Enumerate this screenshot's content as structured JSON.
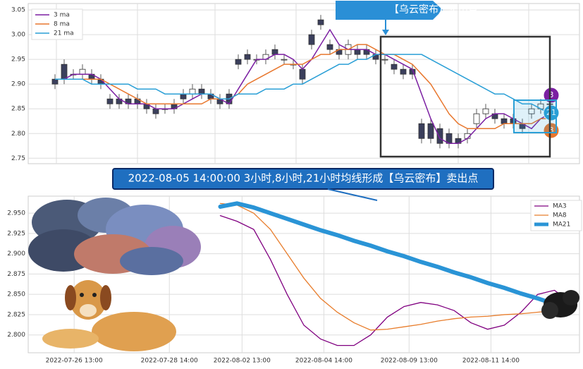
{
  "chart_data": [
    {
      "type": "candlestick",
      "annotation": "【乌云密布】卖出点",
      "open": [
        2.91,
        2.94,
        2.92,
        2.92,
        2.92,
        2.91,
        2.87,
        2.87,
        2.87,
        2.87,
        2.86,
        2.85,
        2.85,
        2.86,
        2.88,
        2.88,
        2.89,
        2.88,
        2.87,
        2.88,
        2.95,
        2.96,
        2.95,
        2.95,
        2.97,
        2.95,
        2.94,
        2.93,
        3.0,
        3.03,
        2.98,
        2.97,
        2.96,
        2.97,
        2.97,
        2.96,
        2.95,
        2.94,
        2.93,
        2.93,
        2.82,
        2.82,
        2.81,
        2.8,
        2.79,
        2.79,
        2.82,
        2.84,
        2.84,
        2.83,
        2.83,
        2.82,
        2.84,
        2.85,
        2.86
      ],
      "close": [
        2.9,
        2.91,
        2.92,
        2.93,
        2.91,
        2.9,
        2.86,
        2.86,
        2.86,
        2.86,
        2.85,
        2.84,
        2.85,
        2.85,
        2.87,
        2.89,
        2.88,
        2.87,
        2.86,
        2.86,
        2.94,
        2.95,
        2.95,
        2.96,
        2.96,
        2.95,
        2.94,
        2.91,
        2.98,
        3.02,
        2.97,
        2.96,
        2.98,
        2.96,
        2.96,
        2.95,
        2.95,
        2.93,
        2.92,
        2.92,
        2.79,
        2.79,
        2.78,
        2.78,
        2.78,
        2.8,
        2.84,
        2.85,
        2.83,
        2.82,
        2.82,
        2.81,
        2.85,
        2.86,
        2.86
      ],
      "high": [
        2.92,
        2.95,
        2.93,
        2.94,
        2.93,
        2.92,
        2.88,
        2.88,
        2.88,
        2.88,
        2.87,
        2.86,
        2.86,
        2.87,
        2.89,
        2.9,
        2.9,
        2.89,
        2.88,
        2.89,
        2.96,
        2.97,
        2.96,
        2.97,
        2.98,
        2.96,
        2.95,
        2.94,
        3.01,
        3.04,
        2.99,
        2.98,
        2.99,
        2.98,
        2.98,
        2.97,
        2.96,
        2.95,
        2.94,
        2.94,
        2.83,
        2.83,
        2.82,
        2.81,
        2.8,
        2.81,
        2.85,
        2.86,
        2.85,
        2.84,
        2.84,
        2.83,
        2.86,
        2.87,
        2.87
      ],
      "low": [
        2.89,
        2.9,
        2.91,
        2.91,
        2.9,
        2.89,
        2.85,
        2.85,
        2.85,
        2.85,
        2.84,
        2.83,
        2.84,
        2.84,
        2.86,
        2.87,
        2.87,
        2.86,
        2.85,
        2.85,
        2.93,
        2.94,
        2.94,
        2.94,
        2.95,
        2.94,
        2.93,
        2.9,
        2.97,
        3.01,
        2.96,
        2.95,
        2.95,
        2.95,
        2.95,
        2.94,
        2.94,
        2.92,
        2.91,
        2.91,
        2.78,
        2.78,
        2.77,
        2.77,
        2.77,
        2.78,
        2.81,
        2.83,
        2.82,
        2.81,
        2.81,
        2.8,
        2.83,
        2.84,
        2.85
      ],
      "up_color": "#ffffff",
      "down_color": "#3b3f5c",
      "series": [
        {
          "name": "3 ma",
          "color": "#7b1fa2",
          "values": [
            2.91,
            2.91,
            2.92,
            2.92,
            2.92,
            2.91,
            2.89,
            2.87,
            2.86,
            2.86,
            2.86,
            2.85,
            2.85,
            2.85,
            2.86,
            2.87,
            2.88,
            2.88,
            2.87,
            2.86,
            2.89,
            2.92,
            2.95,
            2.95,
            2.96,
            2.96,
            2.95,
            2.93,
            2.95,
            2.98,
            3.01,
            2.98,
            2.97,
            2.97,
            2.97,
            2.96,
            2.96,
            2.95,
            2.94,
            2.93,
            2.88,
            2.83,
            2.79,
            2.78,
            2.78,
            2.79,
            2.81,
            2.83,
            2.84,
            2.84,
            2.83,
            2.82,
            2.81,
            2.83,
            2.84
          ]
        },
        {
          "name": "8 ma",
          "color": "#e8772e",
          "values": [
            2.91,
            2.91,
            2.91,
            2.91,
            2.91,
            2.91,
            2.9,
            2.89,
            2.88,
            2.87,
            2.86,
            2.86,
            2.86,
            2.86,
            2.86,
            2.86,
            2.86,
            2.87,
            2.87,
            2.87,
            2.88,
            2.9,
            2.91,
            2.92,
            2.93,
            2.94,
            2.94,
            2.94,
            2.95,
            2.96,
            2.96,
            2.97,
            2.97,
            2.98,
            2.98,
            2.97,
            2.96,
            2.96,
            2.95,
            2.94,
            2.92,
            2.9,
            2.87,
            2.84,
            2.82,
            2.81,
            2.81,
            2.81,
            2.81,
            2.82,
            2.82,
            2.82,
            2.82,
            2.83,
            2.83
          ]
        },
        {
          "name": "21 ma",
          "color": "#2a9fd6",
          "values": [
            2.91,
            2.91,
            2.91,
            2.91,
            2.9,
            2.9,
            2.9,
            2.9,
            2.9,
            2.89,
            2.89,
            2.89,
            2.88,
            2.88,
            2.88,
            2.88,
            2.88,
            2.88,
            2.87,
            2.87,
            2.88,
            2.88,
            2.88,
            2.89,
            2.89,
            2.89,
            2.9,
            2.9,
            2.91,
            2.92,
            2.93,
            2.94,
            2.94,
            2.95,
            2.95,
            2.96,
            2.96,
            2.96,
            2.96,
            2.96,
            2.96,
            2.95,
            2.94,
            2.93,
            2.92,
            2.91,
            2.9,
            2.89,
            2.88,
            2.88,
            2.87,
            2.86,
            2.86,
            2.85,
            2.84
          ]
        }
      ],
      "end_labels": [
        "3",
        "21",
        "8"
      ],
      "ylim": [
        2.739,
        3.063
      ],
      "yticks": [
        2.75,
        {
          "value": 2.8,
          "label": "2.80"
        },
        2.85,
        {
          "value": 2.9,
          "label": "2.90"
        },
        2.95,
        {
          "value": 3,
          "label": "3.00"
        },
        3.05
      ],
      "grid": true
    },
    {
      "type": "line",
      "annotation": "2022-08-05 14:00:00 3小时,8小时,21小时均线形成【乌云密布】卖出点",
      "x": [
        23,
        25,
        27,
        29,
        31,
        33,
        35,
        37,
        39,
        41,
        43,
        45,
        47,
        49,
        51,
        53,
        55,
        57,
        59,
        61,
        63,
        65
      ],
      "xlim": [
        0,
        66
      ],
      "xticks": [
        {
          "value": 5.5,
          "label": "2022-07-26 13:00"
        },
        {
          "value": 16.9,
          "label": "2022-07-28 14:00"
        },
        {
          "value": 25.6,
          "label": "2022-08-02 13:00"
        },
        {
          "value": 35.4,
          "label": "2022-08-04 14:00"
        },
        {
          "value": 45.6,
          "label": "2022-08-09 13:00"
        },
        {
          "value": 55.4,
          "label": "2022-08-11 14:00"
        }
      ],
      "ylim": [
        2.778,
        2.971
      ],
      "yticks": [
        {
          "value": 2.8,
          "label": "2.800"
        },
        2.825,
        {
          "value": 2.85,
          "label": "2.850"
        },
        2.875,
        {
          "value": 2.9,
          "label": "2.900"
        },
        2.925,
        {
          "value": 2.95,
          "label": "2.950"
        }
      ],
      "grid": true,
      "series": [
        {
          "name": "MA3",
          "color": "#800080",
          "width": 1.3,
          "values": [
            2.947,
            2.94,
            2.93,
            2.893,
            2.85,
            2.812,
            2.795,
            2.787,
            2.787,
            2.8,
            2.822,
            2.835,
            2.84,
            2.837,
            2.83,
            2.815,
            2.807,
            2.812,
            2.828,
            2.85,
            2.855,
            2.84
          ]
        },
        {
          "name": "MA8",
          "color": "#e87d2c",
          "width": 1.3,
          "values": [
            2.962,
            2.96,
            2.95,
            2.93,
            2.9,
            2.87,
            2.845,
            2.828,
            2.815,
            2.806,
            2.807,
            2.81,
            2.813,
            2.817,
            2.82,
            2.822,
            2.823,
            2.825,
            2.826,
            2.828,
            2.83,
            2.832
          ]
        },
        {
          "name": "MA21",
          "color": "#2a94d6",
          "width": 6,
          "values": [
            2.958,
            2.962,
            2.957,
            2.95,
            2.943,
            2.936,
            2.929,
            2.923,
            2.916,
            2.91,
            2.903,
            2.897,
            2.89,
            2.884,
            2.877,
            2.871,
            2.864,
            2.858,
            2.851,
            2.845,
            2.838,
            2.835
          ]
        }
      ]
    }
  ]
}
